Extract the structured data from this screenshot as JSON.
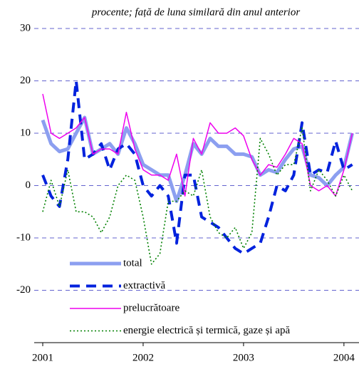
{
  "chart_data": {
    "type": "line",
    "subtitle": "procente; față de luna similară din anul anterior",
    "x": [
      2001,
      2001.083,
      2001.167,
      2001.25,
      2001.333,
      2001.417,
      2001.5,
      2001.583,
      2001.667,
      2001.75,
      2001.833,
      2001.917,
      2002,
      2002.083,
      2002.167,
      2002.25,
      2002.333,
      2002.417,
      2002.5,
      2002.583,
      2002.667,
      2002.75,
      2002.833,
      2002.917,
      2003,
      2003.083,
      2003.167,
      2003.25,
      2003.333,
      2003.417,
      2003.5,
      2003.583,
      2003.667,
      2003.75,
      2003.833,
      2003.917,
      2004,
      2004.083
    ],
    "series": [
      {
        "name": "total",
        "color": "#8c9ff0",
        "values": [
          12.5,
          8,
          6.5,
          7,
          10,
          13,
          6,
          7,
          8,
          6,
          11,
          8,
          4,
          3,
          2,
          2,
          -3,
          2,
          8,
          6,
          9,
          7.5,
          7.5,
          6,
          6,
          5.5,
          2,
          3,
          2.5,
          5,
          7,
          7.5,
          2,
          1.5,
          0,
          2,
          3.5,
          10
        ]
      },
      {
        "name": "extractivă",
        "color": "#0022dd",
        "values": [
          2,
          -2,
          -4,
          5,
          20,
          5,
          6,
          8,
          3,
          7,
          8,
          6,
          0,
          -2,
          0,
          -2,
          -11,
          2,
          2,
          -6,
          -7,
          -8,
          -10,
          -12,
          -13,
          -12,
          -11,
          -6,
          0,
          -1,
          2,
          12,
          2,
          3,
          2.5,
          8.5,
          3,
          4
        ]
      },
      {
        "name": "prelucrătoare",
        "color": "#ee00ee",
        "values": [
          17.5,
          10,
          9,
          10,
          11,
          13,
          6,
          7,
          7,
          6,
          14,
          7,
          3,
          2,
          2,
          1,
          6,
          -2,
          9,
          6,
          12,
          10,
          10,
          11,
          9.5,
          5,
          2,
          4,
          3.5,
          6,
          9,
          8,
          0,
          -1,
          0,
          -2,
          3,
          10
        ]
      },
      {
        "name": "energie electrică și termică, gaze și apă",
        "color": "#008000",
        "values": [
          -5,
          1,
          -4,
          3,
          -5,
          -5,
          -6,
          -9,
          -6,
          0,
          2,
          1,
          -6,
          -15,
          -13,
          -3,
          -3,
          -1,
          -2,
          3,
          -6,
          -9,
          -10,
          -8,
          -12,
          -9,
          9,
          6,
          2,
          4,
          4,
          11,
          -1,
          3,
          1,
          -2,
          2,
          -1
        ]
      }
    ],
    "xlim": [
      2001,
      2004.15
    ],
    "xticks": [
      2001,
      2002,
      2003,
      2004
    ],
    "ylim": [
      -30,
      30
    ],
    "yticks": [
      -20,
      -10,
      0,
      10,
      20,
      30
    ],
    "grid": true
  }
}
